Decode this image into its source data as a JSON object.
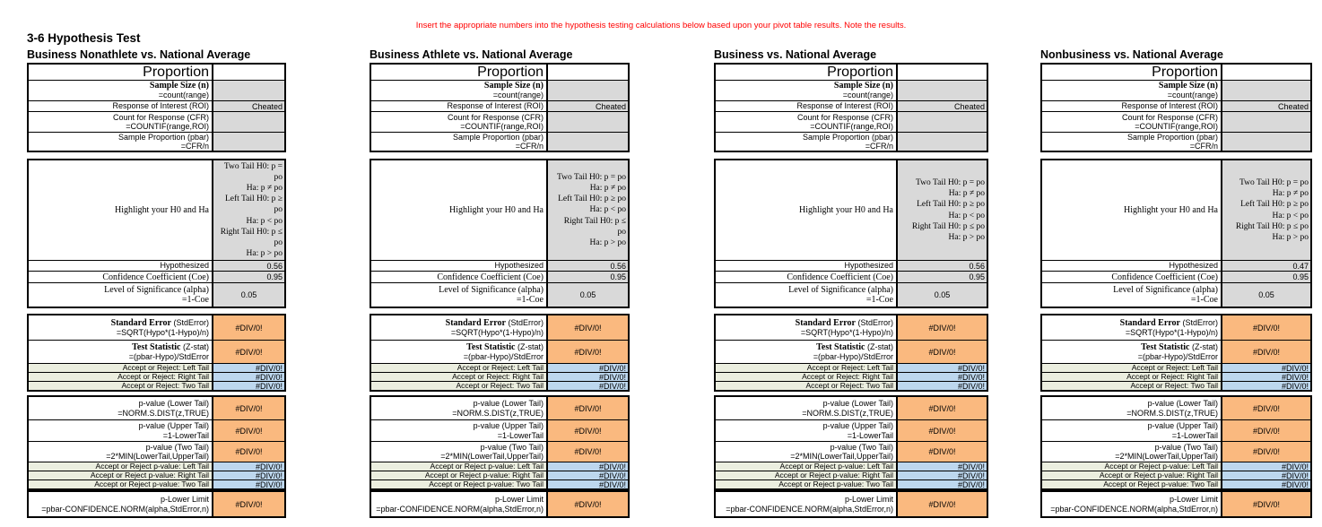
{
  "note": "Insert the appropriate numbers into the hypothesis testing calculations below based upon your pivot table results.  Note the results.",
  "page_title": "3-6 Hypothesis Test",
  "error_value": "#DIV/0!",
  "colors": {
    "note_red": "#FF0000",
    "gray": "#D9D9D9",
    "orange": "#FAB97F",
    "blue": "#BDD7EE",
    "beige": "#EBEEDF"
  },
  "labels": {
    "proportion_header": "Proportion",
    "sample_size": "Sample Size (n)",
    "sample_size_formula": "=count(range)",
    "roi": "Response of Interest (ROI)",
    "cfr": "Count for Response (CFR)",
    "cfr_formula": "=COUNTIF(range,ROI)",
    "pbar": "Sample Proportion (pbar)",
    "pbar_formula": "=CFR/n",
    "highlight": "Highlight your H0 and Ha",
    "hypothesized": "Hypothesized",
    "confidence": "Confidence Coefficient (Coe)",
    "alpha": "Level of Significance (alpha)",
    "alpha_formula": "=1-Coe",
    "stderror_bold": "Standard Error",
    "stderror_rest": " (StdError)",
    "stderror_formula": "=SQRT(Hypo*(1-Hypo)/n)",
    "zstat_bold": "Test Statistic",
    "zstat_rest": " (Z-stat)",
    "zstat_formula": "=(pbar-Hypo)/StdError",
    "accept_left": "Accept or Reject: Left Tail",
    "accept_right": "Accept or Reject: Right Tail",
    "accept_two": "Accept or Reject: Two Tail",
    "pv_lower": "p-value (Lower Tail)",
    "pv_lower_formula": "=NORM.S.DIST(z,TRUE)",
    "pv_upper": "p-value (Upper Tail)",
    "pv_upper_formula": "=1-LowerTail",
    "pv_two": "p-value (Two Tail)",
    "pv_two_formula": "=2*MIN(LowerTail,UpperTail)",
    "accept_pv_left": "Accept or Reject p-value: Left Tail",
    "accept_pv_right": "Accept or Reject p-value: Right Tail",
    "accept_pv_two": "Accept or Reject p-value: Two Tail",
    "p_lower_limit": "p-Lower Limit",
    "p_lower_limit_formula": "=pbar-CONFIDENCE.NORM(alpha,StdError,n)"
  },
  "tables": [
    {
      "title": "Business Nonathlete vs. National Average",
      "roi_value": "Cheated",
      "hypothesized": "0.56",
      "confidence": "0.95",
      "alpha": "0.05",
      "h0_lines": [
        "Two Tail H0: p =",
        "po",
        "Ha: p ≠ po",
        "Left Tail H0: p ≥",
        "po",
        "Ha: p < po",
        "Right Tail H0: p ≤",
        "po",
        "Ha: p > po"
      ]
    },
    {
      "title": "Business Athlete vs. National Average",
      "roi_value": "Cheated",
      "hypothesized": "0.56",
      "confidence": "0.95",
      "alpha": "0.05",
      "h0_lines": [
        "Two Tail H0: p = po",
        "Ha: p ≠ po",
        "Left Tail H0: p ≥ po",
        "Ha: p < po",
        "Right Tail H0: p ≤",
        "po",
        "Ha: p > po"
      ]
    },
    {
      "title": "Business vs. National Average",
      "roi_value": "Cheated",
      "hypothesized": "0.56",
      "confidence": "0.95",
      "alpha": "0.05",
      "h0_lines": [
        "Two Tail H0: p = po",
        "Ha: p ≠ po",
        "Left Tail H0: p ≥ po",
        "Ha: p < po",
        "Right Tail H0: p ≤ po",
        "Ha: p > po"
      ]
    },
    {
      "title": "Nonbusiness vs. National Average",
      "roi_value": "Cheated",
      "hypothesized": "0.47",
      "confidence": "0.95",
      "alpha": "0.05",
      "h0_lines": [
        "Two Tail H0: p = po",
        "Ha: p ≠ po",
        "Left Tail H0: p ≥ po",
        "Ha: p < po",
        "Right Tail H0: p ≤ po",
        "Ha: p > po"
      ]
    }
  ]
}
